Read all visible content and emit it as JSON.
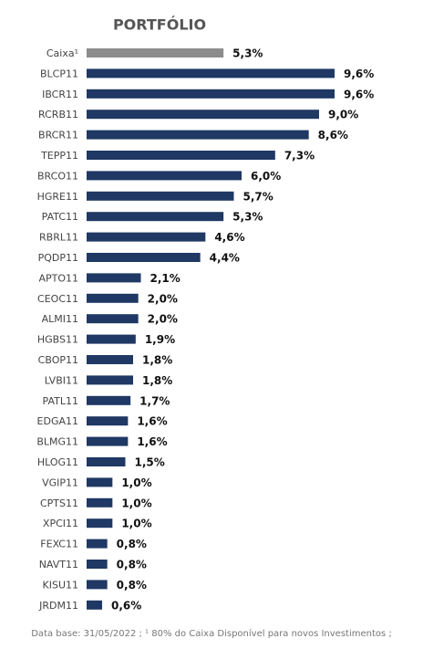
{
  "chart_data": {
    "type": "bar",
    "orientation": "horizontal",
    "title": "PORTFÓLIO",
    "categories": [
      "Caixa¹",
      "BLCP11",
      "IBCR11",
      "RCRB11",
      "BRCR11",
      "TEPP11",
      "BRCO11",
      "HGRE11",
      "PATC11",
      "RBRL11",
      "PQDP11",
      "APTO11",
      "CEOC11",
      "ALMI11",
      "HGBS11",
      "CBOP11",
      "LVBI11",
      "PATL11",
      "EDGA11",
      "BLMG11",
      "HLOG11",
      "VGIP11",
      "CPTS11",
      "XPCI11",
      "FEXC11",
      "NAVT11",
      "KISU11",
      "JRDM11"
    ],
    "values": [
      5.3,
      9.6,
      9.6,
      9.0,
      8.6,
      7.3,
      6.0,
      5.7,
      5.3,
      4.6,
      4.4,
      2.1,
      2.0,
      2.0,
      1.9,
      1.8,
      1.8,
      1.7,
      1.6,
      1.6,
      1.5,
      1.0,
      1.0,
      1.0,
      0.8,
      0.8,
      0.8,
      0.6
    ],
    "value_labels": [
      "5,3%",
      "9,6%",
      "9,6%",
      "9,0%",
      "8,6%",
      "7,3%",
      "6,0%",
      "5,7%",
      "5,3%",
      "4,6%",
      "4,4%",
      "2,1%",
      "2,0%",
      "2,0%",
      "1,9%",
      "1,8%",
      "1,8%",
      "1,7%",
      "1,6%",
      "1,6%",
      "1,5%",
      "1,0%",
      "1,0%",
      "1,0%",
      "0,8%",
      "0,8%",
      "0,8%",
      "0,6%"
    ],
    "colors": [
      "#8c8c8c",
      "#1f3864",
      "#1f3864",
      "#1f3864",
      "#1f3864",
      "#1f3864",
      "#1f3864",
      "#1f3864",
      "#1f3864",
      "#1f3864",
      "#1f3864",
      "#1f3864",
      "#1f3864",
      "#1f3864",
      "#1f3864",
      "#1f3864",
      "#1f3864",
      "#1f3864",
      "#1f3864",
      "#1f3864",
      "#1f3864",
      "#1f3864",
      "#1f3864",
      "#1f3864",
      "#1f3864",
      "#1f3864",
      "#1f3864",
      "#1f3864"
    ],
    "footnote": "Data base: 31/05/2022 ; ¹ 80% do Caixa Disponível para novos Investimentos ;"
  }
}
